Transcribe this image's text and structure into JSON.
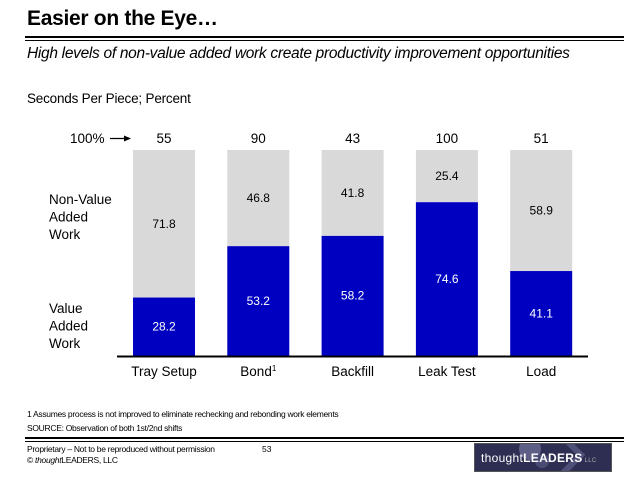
{
  "header": {
    "title": "Easier on the Eye…",
    "subtitle": "High levels of non-value added work create productivity improvement opportunities",
    "units": "Seconds Per Piece; Percent"
  },
  "chart_data": {
    "type": "bar",
    "stacked": true,
    "title": "",
    "xlabel": "",
    "ylabel": "Percent",
    "ylim": [
      0,
      100
    ],
    "categories": [
      "Tray Setup",
      "Bond",
      "Backfill",
      "Leak Test",
      "Load"
    ],
    "category_superscripts": [
      "",
      "1",
      "",
      "",
      ""
    ],
    "totals_label": "100%",
    "totals": [
      55,
      90,
      43,
      100,
      51
    ],
    "series": [
      {
        "name": "Value Added Work",
        "label_lines": [
          "Value",
          "Added",
          "Work"
        ],
        "color": "#0000c0",
        "values": [
          28.2,
          53.2,
          58.2,
          74.6,
          41.1
        ]
      },
      {
        "name": "Non-Value Added Work",
        "label_lines": [
          "Non-Value",
          "Added",
          "Work"
        ],
        "color": "#d9d9d9",
        "values": [
          71.8,
          46.8,
          41.8,
          25.4,
          58.9
        ]
      }
    ],
    "grid": false,
    "legend": "left"
  },
  "footer": {
    "footnote": "1 Assumes process is not improved to eliminate rechecking and rebonding work elements",
    "source": "SOURCE: Observation of both 1st/2nd shifts",
    "proprietary": "Proprietary – Not to be reproduced without permission",
    "copyright_prefix": "© ",
    "copyright_brand_italic": "thought",
    "copyright_brand_rest": "LEADERS, LLC",
    "page_number": "53",
    "logo": {
      "bold": "thought",
      "caps": "LEADERS",
      "suffix": "LLC"
    }
  }
}
